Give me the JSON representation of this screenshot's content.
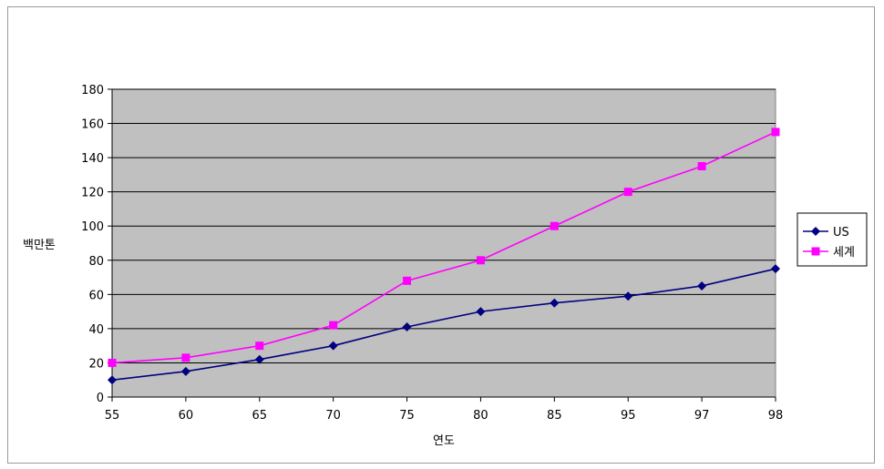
{
  "chart_data": {
    "type": "line",
    "title": "",
    "xlabel": "연도",
    "ylabel": "백만톤",
    "categories": [
      "55",
      "60",
      "65",
      "70",
      "75",
      "80",
      "85",
      "95",
      "97",
      "98"
    ],
    "ylim": [
      0,
      180
    ],
    "yticks": [
      0,
      20,
      40,
      60,
      80,
      100,
      120,
      140,
      160,
      180
    ],
    "grid": true,
    "legend_position": "right",
    "plot_background": "#c0c0c0",
    "series": [
      {
        "name": "US",
        "color": "#000080",
        "marker": "diamond",
        "values": [
          10,
          15,
          22,
          30,
          41,
          50,
          55,
          59,
          65,
          75
        ]
      },
      {
        "name": "세계",
        "color": "#ff00ff",
        "marker": "square",
        "values": [
          20,
          23,
          30,
          42,
          68,
          80,
          100,
          120,
          135,
          155
        ]
      }
    ]
  }
}
